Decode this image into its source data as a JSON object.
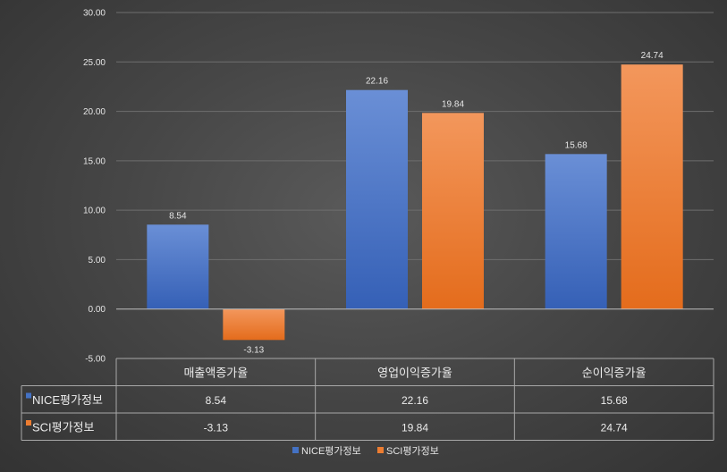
{
  "chart_data": {
    "type": "bar",
    "categories": [
      "매출액증가율",
      "영업이익증가율",
      "순이익증가율"
    ],
    "series": [
      {
        "name": "NICE평가정보",
        "values": [
          8.54,
          22.16,
          15.68
        ],
        "color": "#4472c4"
      },
      {
        "name": "SCI평가정보",
        "values": [
          -3.13,
          19.84,
          24.74
        ],
        "color": "#ed7d31"
      }
    ],
    "value_labels": [
      [
        "8.54",
        "22.16",
        "15.68"
      ],
      [
        "-3.13",
        "19.84",
        "24.74"
      ]
    ],
    "y_ticks": [
      "-5.00",
      "0.00",
      "5.00",
      "10.00",
      "15.00",
      "20.00",
      "25.00",
      "30.00"
    ],
    "ylim": [
      -5,
      30
    ],
    "grid": true,
    "data_table": true,
    "legend_position": "bottom"
  }
}
